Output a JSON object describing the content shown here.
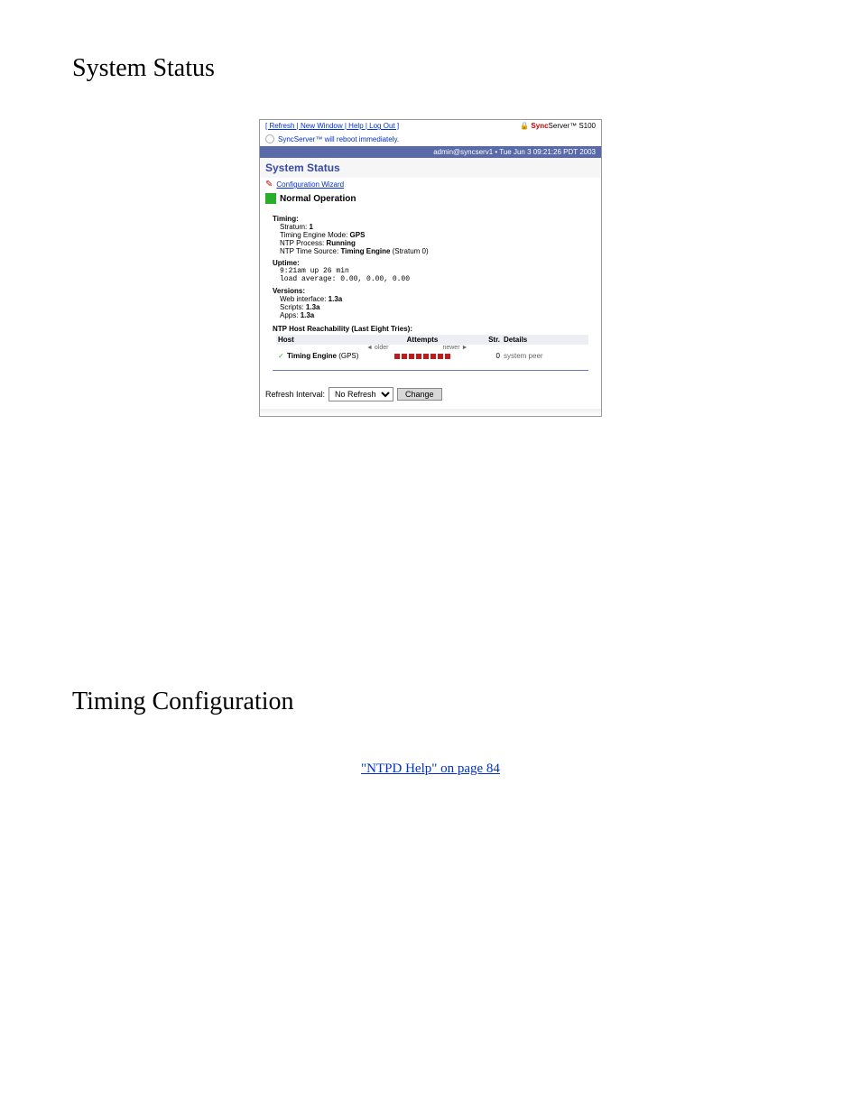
{
  "doc": {
    "heading1": "System Status",
    "heading2": "Timing Configuration",
    "link_text": "\"NTPD Help\" on page 84"
  },
  "ss": {
    "top_links_text": "[ Refresh | New Window | Help | Log Out ]",
    "brand_main": "Sync",
    "brand_rest": "Server™ S100",
    "lock_icon": "🔒",
    "notice": "SyncServer™ will reboot immediately.",
    "userbar": "admin@syncserv1 • Tue Jun 3 09:21:26 PDT 2003",
    "title": "System Status",
    "wizard": "Configuration Wizard",
    "normal": "Normal Operation",
    "timing": {
      "title": "Timing:",
      "stratum_label": "Stratum: ",
      "stratum_val": "1",
      "mode_label": "Timing Engine Mode: ",
      "mode_val": "GPS",
      "proc_label": "NTP Process: ",
      "proc_val": "Running",
      "source_label": "NTP Time Source: ",
      "source_val": "Timing Engine",
      "source_extra": " (Stratum 0)"
    },
    "uptime": {
      "title": "Uptime:",
      "line1": "9:21am  up 26 min",
      "line2": "load average: 0.00, 0.00, 0.00"
    },
    "versions": {
      "title": "Versions:",
      "web_label": "Web interface: ",
      "web_val": "1.3a",
      "scripts_label": "Scripts: ",
      "scripts_val": "1.3a",
      "apps_label": "Apps: ",
      "apps_val": "1.3a"
    },
    "reach": {
      "title": "NTP Host Reachability (Last Eight Tries):",
      "col_host": "Host",
      "col_attempts": "Attempts",
      "col_str": "Str.",
      "col_details": "Details",
      "older": "◄ older",
      "newer": "newer ►",
      "row_host": "Timing Engine",
      "row_gps": " (GPS)",
      "row_str": "0",
      "row_details": "system peer"
    },
    "refresh": {
      "label": "Refresh Interval:",
      "selected": "No Refresh",
      "button": "Change"
    }
  },
  "colors": {
    "link": "#0030cc",
    "brand_red": "#cc0000",
    "userbar_bg": "#5a6aa8",
    "title_color": "#3a4aa0",
    "indicator_green": "#2aae2a",
    "dot_red": "#c01a1a",
    "hr": "#6a7ac0"
  }
}
